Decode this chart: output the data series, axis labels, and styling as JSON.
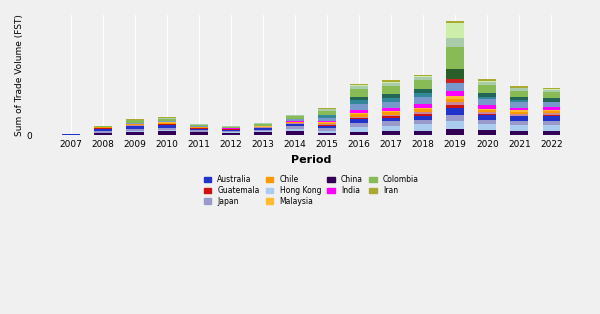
{
  "years": [
    2007,
    2008,
    2009,
    2010,
    2011,
    2012,
    2013,
    2014,
    2015,
    2016,
    2017,
    2018,
    2019,
    2020,
    2021,
    2022
  ],
  "countries": [
    "Australia",
    "Guatemala",
    "Japan",
    "Chile",
    "Hong Kong",
    "Malaysia",
    "China",
    "India",
    "Colombia",
    "Iran"
  ],
  "color_map": {
    "Australia": "#2222bb",
    "Guatemala": "#cc1111",
    "Japan": "#9999bb",
    "Chile": "#ff9900",
    "Hong Kong": "#aaccee",
    "Malaysia": "#ffbb33",
    "China": "#220055",
    "India": "#ff00ff",
    "Colombia": "#88bb55",
    "Iran": "#aaaa33",
    "seg_teal": "#336677",
    "seg_ltblue": "#7799bb",
    "seg_dkgreen": "#225522",
    "seg_mdgreen": "#447744",
    "seg_ltgreen": "#aaccaa",
    "seg_pink": "#dd88aa"
  },
  "segments": [
    {
      "name": "China",
      "color": "#330055"
    },
    {
      "name": "Hong Kong",
      "color": "#aaccee"
    },
    {
      "name": "Japan",
      "color": "#9999cc"
    },
    {
      "name": "Australia",
      "color": "#2233cc"
    },
    {
      "name": "Guatemala",
      "color": "#cc1111"
    },
    {
      "name": "seg_pink",
      "color": "#cc8899"
    },
    {
      "name": "Chile",
      "color": "#ff9900"
    },
    {
      "name": "Malaysia",
      "color": "#ffbb33"
    },
    {
      "name": "India",
      "color": "#ff00ff"
    },
    {
      "name": "seg_ltblue",
      "color": "#7799cc"
    },
    {
      "name": "seg_red",
      "color": "#cc2222"
    },
    {
      "name": "seg_teal",
      "color": "#338899"
    },
    {
      "name": "seg_dkteal",
      "color": "#226655"
    },
    {
      "name": "seg_dkgrn",
      "color": "#2a5e2a"
    },
    {
      "name": "Colombia",
      "color": "#88bb55"
    },
    {
      "name": "seg_ltgrn",
      "color": "#aaccaa"
    },
    {
      "name": "seg_vltgrn",
      "color": "#cceeaa"
    },
    {
      "name": "Iran",
      "color": "#aaaa33"
    }
  ],
  "data": {
    "China": [
      0.1,
      0.45,
      0.8,
      0.9,
      0.65,
      0.5,
      0.65,
      0.9,
      0.6,
      0.8,
      0.9,
      1.0,
      1.5,
      1.2,
      1.1,
      1.1
    ],
    "Hong Kong": [
      0.0,
      0.15,
      0.3,
      0.35,
      0.2,
      0.2,
      0.3,
      0.6,
      0.5,
      1.2,
      1.3,
      1.5,
      1.8,
      1.3,
      1.3,
      1.3
    ],
    "Japan": [
      0.05,
      0.35,
      0.4,
      0.45,
      0.28,
      0.22,
      0.35,
      0.55,
      0.5,
      0.8,
      1.0,
      1.0,
      1.5,
      1.0,
      0.85,
      0.85
    ],
    "Australia": [
      0.1,
      0.6,
      0.55,
      0.65,
      0.42,
      0.35,
      0.38,
      0.5,
      0.55,
      0.9,
      0.9,
      1.0,
      1.6,
      1.2,
      1.1,
      1.1
    ],
    "Guatemala": [
      0.05,
      0.12,
      0.18,
      0.18,
      0.11,
      0.08,
      0.08,
      0.12,
      0.18,
      0.28,
      0.35,
      0.45,
      0.7,
      0.18,
      0.18,
      0.35
    ],
    "seg_pink": [
      0.0,
      0.1,
      0.15,
      0.18,
      0.1,
      0.08,
      0.1,
      0.15,
      0.2,
      0.35,
      0.35,
      0.4,
      0.6,
      0.4,
      0.35,
      0.35
    ],
    "Chile": [
      0.0,
      0.08,
      0.15,
      0.18,
      0.08,
      0.08,
      0.1,
      0.18,
      0.35,
      0.55,
      0.55,
      0.65,
      0.72,
      0.55,
      0.55,
      0.55
    ],
    "Malaysia": [
      0.0,
      0.05,
      0.1,
      0.15,
      0.08,
      0.05,
      0.08,
      0.12,
      0.18,
      0.35,
      0.35,
      0.42,
      0.55,
      0.35,
      0.35,
      0.28
    ],
    "India": [
      0.0,
      0.04,
      0.08,
      0.08,
      0.04,
      0.04,
      0.04,
      0.1,
      0.35,
      0.7,
      0.7,
      0.9,
      1.25,
      0.9,
      0.55,
      0.55
    ],
    "seg_ltblue": [
      0.0,
      0.08,
      0.18,
      0.18,
      0.11,
      0.11,
      0.18,
      0.55,
      0.7,
      1.28,
      1.28,
      1.45,
      1.8,
      1.28,
      1.28,
      1.28
    ],
    "seg_red": [
      0.0,
      0.0,
      0.0,
      0.0,
      0.0,
      0.0,
      0.0,
      0.0,
      0.0,
      0.0,
      0.0,
      0.0,
      1.1,
      0.0,
      0.0,
      0.0
    ],
    "seg_teal": [
      0.0,
      0.0,
      0.0,
      0.0,
      0.0,
      0.0,
      0.0,
      0.1,
      0.5,
      0.9,
      0.95,
      1.0,
      0.0,
      0.55,
      0.48,
      0.0
    ],
    "seg_dkteal": [
      0.0,
      0.0,
      0.0,
      0.0,
      0.0,
      0.0,
      0.0,
      0.0,
      0.0,
      0.8,
      0.85,
      0.9,
      0.0,
      0.8,
      0.75,
      0.8
    ],
    "seg_dkgrn": [
      0.0,
      0.0,
      0.0,
      0.0,
      0.0,
      0.0,
      0.0,
      0.0,
      0.0,
      0.0,
      0.0,
      0.0,
      2.2,
      0.0,
      0.0,
      0.0
    ],
    "Colombia": [
      0.08,
      0.18,
      0.55,
      0.55,
      0.35,
      0.28,
      0.35,
      0.55,
      1.1,
      1.82,
      2.0,
      2.0,
      5.1,
      2.0,
      1.45,
      1.45
    ],
    "seg_ltgrn": [
      0.0,
      0.0,
      0.2,
      0.22,
      0.15,
      0.12,
      0.15,
      0.2,
      0.35,
      0.65,
      0.7,
      0.7,
      2.0,
      0.7,
      0.55,
      0.55
    ],
    "seg_vltgrn": [
      0.0,
      0.0,
      0.0,
      0.0,
      0.0,
      0.0,
      0.0,
      0.0,
      0.1,
      0.2,
      0.22,
      0.25,
      3.5,
      0.2,
      0.18,
      0.18
    ],
    "Iran": [
      0.0,
      0.04,
      0.08,
      0.1,
      0.04,
      0.04,
      0.08,
      0.1,
      0.18,
      0.35,
      0.35,
      0.35,
      0.55,
      0.35,
      0.28,
      0.28
    ]
  },
  "xlabel": "Period",
  "ylabel": "Sum of Trade Volume (FST)",
  "bg_color": "#f0f0f0",
  "plot_bg": "#f0f0f0",
  "grid_color": "#ffffff"
}
